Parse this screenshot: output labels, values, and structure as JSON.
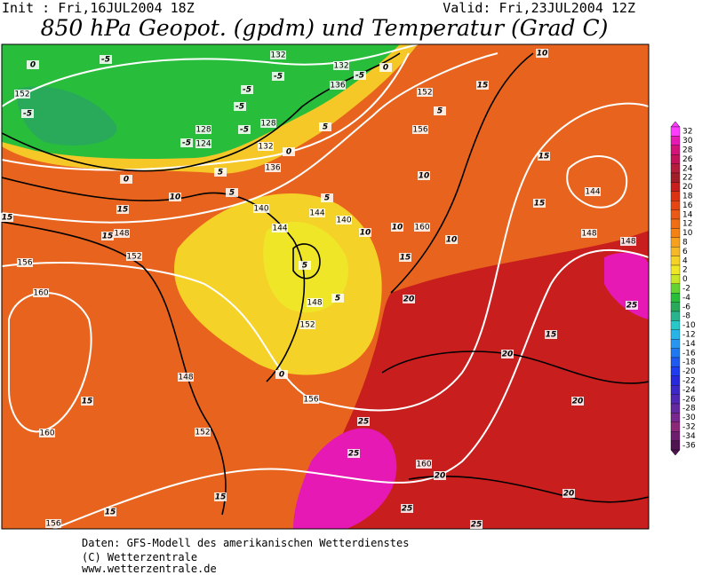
{
  "header": {
    "init": "Init : Fri,16JUL2004 18Z",
    "valid": "Valid: Fri,23JUL2004 12Z",
    "title": "850 hPa Geopot. (gpdm) und Temperatur (Grad C)"
  },
  "legend": {
    "labels": [
      32,
      30,
      28,
      26,
      24,
      22,
      20,
      18,
      16,
      14,
      12,
      10,
      8,
      6,
      4,
      2,
      0,
      -2,
      -4,
      -6,
      -8,
      -10,
      -12,
      -14,
      -16,
      -18,
      -20,
      -22,
      -24,
      -26,
      -28,
      -30,
      -32,
      -34,
      -36
    ],
    "colors": [
      "#ff3cff",
      "#e619b4",
      "#d21478",
      "#c3145a",
      "#b41e3c",
      "#a01e28",
      "#c81e1e",
      "#dc3214",
      "#e64614",
      "#eb5a14",
      "#f06e14",
      "#f58214",
      "#f5a01e",
      "#f5b928",
      "#f5d228",
      "#f0e628",
      "#c8e628",
      "#64d232",
      "#28be3c",
      "#28aa5a",
      "#28b48c",
      "#28c8c8",
      "#28b4e6",
      "#2896f0",
      "#1e78f0",
      "#1e5af0",
      "#1e3cf0",
      "#2828dc",
      "#3c28c8",
      "#5028b4",
      "#6428a0",
      "#78288c",
      "#8c2878",
      "#6e1e6e",
      "#501450"
    ]
  },
  "contour_labels": {
    "geopotential": [
      "152",
      "132",
      "132",
      "136",
      "152",
      "128",
      "124",
      "128",
      "132",
      "136",
      "156",
      "140",
      "144",
      "140",
      "144",
      "160",
      "148",
      "152",
      "156",
      "160",
      "148",
      "152",
      "148",
      "156",
      "160",
      "152",
      "160",
      "156",
      "144",
      "148",
      "148"
    ],
    "temperature": [
      "0",
      "-5",
      "-5",
      "-5",
      "-5",
      "-5",
      "-5",
      "-5",
      "-5",
      "0",
      "0",
      "0",
      "5",
      "5",
      "5",
      "5",
      "5",
      "10",
      "10",
      "10",
      "10",
      "10",
      "10",
      "15",
      "15",
      "15",
      "15",
      "15",
      "15",
      "15",
      "15",
      "15",
      "15",
      "15",
      "5",
      "5",
      "0",
      "20",
      "20",
      "20",
      "20",
      "20",
      "25",
      "25",
      "25",
      "25",
      "25"
    ]
  },
  "footer": {
    "lines": [
      "Daten: GFS-Modell des amerikanischen Wetterdienstes",
      "(C) Wetterzentrale",
      "www.wetterzentrale.de"
    ]
  }
}
